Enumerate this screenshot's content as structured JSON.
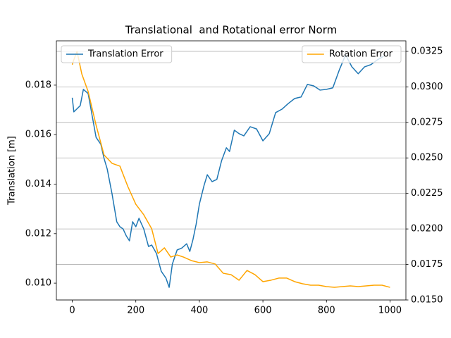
{
  "chart_data": {
    "type": "line",
    "title": "Translational  and Rotational error Norm",
    "ylabel": "Translation [m]",
    "xlim": [
      -50,
      1050
    ],
    "xticks": [
      0,
      200,
      400,
      600,
      800,
      1000
    ],
    "ylim": [
      0.00932,
      0.01979
    ],
    "yticks": [
      {
        "value": 0.01,
        "label": "0.010"
      },
      0.012,
      0.014,
      0.016,
      0.018
    ],
    "y2lim": [
      0.015,
      0.03324
    ],
    "y2ticks": [
      {
        "value": 0.015,
        "label": "0.0150"
      },
      0.0175,
      {
        "value": 0.02,
        "label": "0.0200"
      },
      0.0225,
      {
        "value": 0.025,
        "label": "0.0250"
      },
      0.0275,
      {
        "value": 0.03,
        "label": "0.0300"
      },
      0.0325
    ],
    "grid": "y2",
    "series": [
      {
        "name": "Translation Error",
        "color": "#1f77b4",
        "axis": "y",
        "legend": "upper left",
        "x": [
          0,
          5,
          25,
          35,
          50,
          75,
          90,
          100,
          110,
          125,
          140,
          150,
          160,
          170,
          180,
          190,
          200,
          210,
          225,
          240,
          250,
          265,
          280,
          295,
          305,
          315,
          330,
          345,
          360,
          370,
          380,
          390,
          400,
          415,
          425,
          440,
          455,
          470,
          485,
          495,
          510,
          525,
          540,
          560,
          580,
          600,
          620,
          640,
          660,
          680,
          700,
          720,
          740,
          760,
          780,
          800,
          820,
          840,
          860,
          880,
          900,
          920,
          940,
          960,
          980
        ],
        "values": [
          0.01749,
          0.01692,
          0.01717,
          0.01783,
          0.01766,
          0.01589,
          0.01561,
          0.01504,
          0.01461,
          0.01362,
          0.01248,
          0.01228,
          0.01219,
          0.01191,
          0.01171,
          0.01248,
          0.01228,
          0.01262,
          0.01219,
          0.01148,
          0.01154,
          0.0112,
          0.01048,
          0.0102,
          0.00983,
          0.01077,
          0.01134,
          0.01142,
          0.01159,
          0.01128,
          0.01177,
          0.01239,
          0.01319,
          0.01396,
          0.01438,
          0.0141,
          0.01419,
          0.01495,
          0.01547,
          0.01532,
          0.01618,
          0.01604,
          0.01595,
          0.01632,
          0.01623,
          0.01575,
          0.01604,
          0.01689,
          0.01703,
          0.01726,
          0.01746,
          0.01752,
          0.01803,
          0.01797,
          0.0178,
          0.01783,
          0.01789,
          0.0186,
          0.01922,
          0.01874,
          0.01846,
          0.01874,
          0.01883,
          0.01902,
          0.01917
        ]
      },
      {
        "name": "Rotation Error",
        "color": "#ffa500",
        "axis": "y2",
        "legend": "upper right",
        "x": [
          0,
          5,
          15,
          30,
          50,
          75,
          100,
          125,
          150,
          175,
          200,
          225,
          250,
          270,
          290,
          310,
          330,
          350,
          375,
          400,
          425,
          450,
          475,
          500,
          525,
          550,
          575,
          600,
          625,
          650,
          675,
          700,
          725,
          750,
          775,
          800,
          825,
          850,
          875,
          900,
          925,
          950,
          975,
          1000
        ],
        "values": [
          0.03156,
          0.03191,
          0.0325,
          0.03091,
          0.02967,
          0.0273,
          0.02521,
          0.02462,
          0.02442,
          0.02298,
          0.02174,
          0.021,
          0.02001,
          0.01827,
          0.01867,
          0.01802,
          0.01817,
          0.01802,
          0.01777,
          0.01763,
          0.01768,
          0.01753,
          0.01688,
          0.01678,
          0.01639,
          0.01708,
          0.01678,
          0.01629,
          0.01639,
          0.01654,
          0.01654,
          0.01629,
          0.01614,
          0.01604,
          0.01604,
          0.01594,
          0.01589,
          0.01594,
          0.01599,
          0.01594,
          0.01599,
          0.01604,
          0.01604,
          0.01589
        ]
      }
    ]
  }
}
